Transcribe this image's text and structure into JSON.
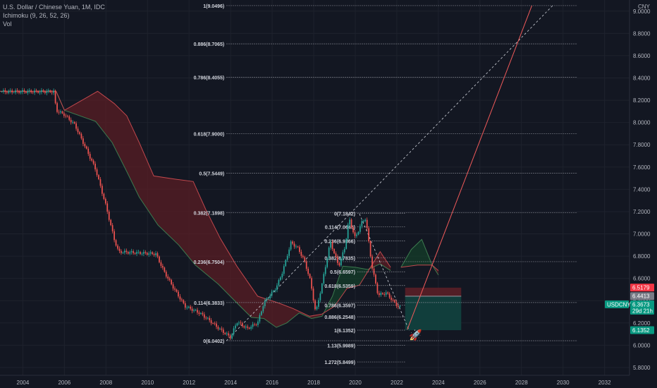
{
  "legend": {
    "title": "U.S. Dollar / Chinese Yuan, 1M, IDC",
    "indicator": "Ichimoku (9, 26, 52, 26)",
    "volume": "Vol"
  },
  "chart_data": {
    "type": "candlestick",
    "currency": "CNY",
    "symbol": "USDCNY",
    "ylim": [
      5.73,
      9.1
    ],
    "y_ticks": [
      5.8,
      6.0,
      6.2,
      6.4,
      6.6,
      6.8,
      7.0,
      7.2,
      7.4,
      7.6,
      7.8,
      8.0,
      8.2,
      8.4,
      8.6,
      8.8,
      9.0
    ],
    "y_tick_labels": [
      "5.8000",
      "6.0000",
      "6.2000",
      "6.4000",
      "6.6000",
      "6.8000",
      "7.0000",
      "7.2000",
      "7.4000",
      "7.6000",
      "7.8000",
      "8.0000",
      "8.2000",
      "8.4000",
      "8.6000",
      "8.8000",
      "9.0000"
    ],
    "x_ticks": [
      2004,
      2006,
      2008,
      2010,
      2012,
      2014,
      2016,
      2018,
      2020,
      2022,
      2024,
      2026,
      2028,
      2030,
      2032
    ],
    "x_tick_labels": [
      "2004",
      "2006",
      "2008",
      "2010",
      "2012",
      "2014",
      "2016",
      "2018",
      "2020",
      "2022",
      "2024",
      "2026",
      "2028",
      "2030",
      "2032"
    ],
    "xlim": [
      2002.9,
      2033.2
    ],
    "price_path": [
      [
        2002.9,
        8.277
      ],
      [
        2005.5,
        8.277
      ],
      [
        2005.6,
        8.11
      ],
      [
        2006.0,
        8.07
      ],
      [
        2006.5,
        7.98
      ],
      [
        2007.0,
        7.78
      ],
      [
        2007.5,
        7.58
      ],
      [
        2008.0,
        7.25
      ],
      [
        2008.4,
        6.95
      ],
      [
        2008.6,
        6.84
      ],
      [
        2009.5,
        6.83
      ],
      [
        2010.4,
        6.82
      ],
      [
        2010.8,
        6.66
      ],
      [
        2011.3,
        6.5
      ],
      [
        2011.8,
        6.35
      ],
      [
        2012.5,
        6.29
      ],
      [
        2013.0,
        6.22
      ],
      [
        2013.5,
        6.14
      ],
      [
        2014.0,
        6.07
      ],
      [
        2014.3,
        6.21
      ],
      [
        2014.8,
        6.15
      ],
      [
        2015.3,
        6.2
      ],
      [
        2015.6,
        6.38
      ],
      [
        2016.2,
        6.52
      ],
      [
        2016.5,
        6.66
      ],
      [
        2016.9,
        6.92
      ],
      [
        2017.2,
        6.88
      ],
      [
        2017.5,
        6.78
      ],
      [
        2017.8,
        6.61
      ],
      [
        2018.1,
        6.29
      ],
      [
        2018.4,
        6.55
      ],
      [
        2018.8,
        6.93
      ],
      [
        2019.2,
        6.71
      ],
      [
        2019.5,
        6.88
      ],
      [
        2019.7,
        7.14
      ],
      [
        2020.0,
        6.96
      ],
      [
        2020.3,
        7.1
      ],
      [
        2020.5,
        7.14
      ],
      [
        2020.8,
        6.71
      ],
      [
        2021.1,
        6.45
      ],
      [
        2021.5,
        6.47
      ],
      [
        2021.8,
        6.4
      ],
      [
        2022.1,
        6.34
      ]
    ],
    "ichimoku": {
      "span_a": [
        [
          2002.9,
          8.28
        ],
        [
          2005.6,
          8.28
        ],
        [
          2006.0,
          8.11
        ],
        [
          2007.5,
          8.01
        ],
        [
          2008.3,
          7.82
        ],
        [
          2009.0,
          7.56
        ],
        [
          2009.6,
          7.33
        ],
        [
          2010.5,
          7.08
        ],
        [
          2011.5,
          6.9
        ],
        [
          2012.3,
          6.72
        ],
        [
          2013.4,
          6.55
        ],
        [
          2014.3,
          6.38
        ],
        [
          2015.0,
          6.25
        ],
        [
          2015.6,
          6.24
        ],
        [
          2016.2,
          6.16
        ],
        [
          2016.7,
          6.2
        ],
        [
          2017.3,
          6.29
        ],
        [
          2017.9,
          6.24
        ],
        [
          2018.4,
          6.26
        ],
        [
          2018.9,
          6.44
        ],
        [
          2019.4,
          6.71
        ],
        [
          2020.0,
          6.7
        ],
        [
          2020.6,
          6.68
        ],
        [
          2021.2,
          6.73
        ],
        [
          2021.7,
          6.67
        ]
      ],
      "span_b": [
        [
          2002.9,
          8.28
        ],
        [
          2005.6,
          8.28
        ],
        [
          2006.0,
          8.11
        ],
        [
          2007.6,
          8.28
        ],
        [
          2008.4,
          8.17
        ],
        [
          2009.0,
          8.06
        ],
        [
          2009.6,
          7.82
        ],
        [
          2010.3,
          7.52
        ],
        [
          2011.4,
          7.49
        ],
        [
          2012.2,
          7.47
        ],
        [
          2012.8,
          7.22
        ],
        [
          2013.5,
          6.96
        ],
        [
          2014.3,
          6.71
        ],
        [
          2015.3,
          6.44
        ],
        [
          2016.3,
          6.38
        ],
        [
          2017.0,
          6.33
        ],
        [
          2017.8,
          6.26
        ],
        [
          2018.4,
          6.28
        ],
        [
          2019.0,
          6.35
        ],
        [
          2019.6,
          6.51
        ],
        [
          2020.2,
          6.54
        ],
        [
          2020.8,
          6.72
        ],
        [
          2021.2,
          6.84
        ],
        [
          2021.7,
          6.7
        ]
      ],
      "future_span_a": [
        [
          2022.2,
          6.7
        ],
        [
          2022.7,
          6.86
        ],
        [
          2023.2,
          6.95
        ],
        [
          2023.7,
          6.72
        ],
        [
          2024.0,
          6.63
        ]
      ],
      "future_span_b": [
        [
          2022.2,
          6.7
        ],
        [
          2023.0,
          6.72
        ],
        [
          2023.7,
          6.72
        ],
        [
          2024.0,
          6.67
        ]
      ]
    },
    "fib_left": {
      "x_start": 2013.8,
      "x_end": 2030.7,
      "levels": [
        {
          "label": "1(9.0496)",
          "value": 9.0496
        },
        {
          "label": "0.886(8.7065)",
          "value": 8.7065
        },
        {
          "label": "0.786(8.4055)",
          "value": 8.4055
        },
        {
          "label": "0.618(7.9000)",
          "value": 7.9
        },
        {
          "label": "0.5(7.5449)",
          "value": 7.5449
        },
        {
          "label": "0.382(7.1898)",
          "value": 7.1898
        },
        {
          "label": "0.236(6.7504)",
          "value": 6.7504
        },
        {
          "label": "0.114(6.3833)",
          "value": 6.3833
        },
        {
          "label": "0(6.0402)",
          "value": 6.0402
        }
      ]
    },
    "fib_right": {
      "x_start": 2020.1,
      "x_end": 2030.7,
      "levels": [
        {
          "label": "0(7.1842)",
          "value": 7.1842,
          "x_end": 2022.4
        },
        {
          "label": "0.114(7.0646)",
          "value": 7.0646,
          "x_end": 2022.4
        },
        {
          "label": "0.236(6.9366)",
          "value": 6.9366,
          "x_end": 2022.4
        },
        {
          "label": "0.382(6.7835)",
          "value": 6.7835,
          "x_end": 2022.4
        },
        {
          "label": "0.5(6.6597)",
          "value": 6.6597,
          "x_end": 2022.4
        },
        {
          "label": "0.618(6.5359)",
          "value": 6.5359,
          "x_end": 2022.4
        },
        {
          "label": "0.786(6.3597)",
          "value": 6.3597,
          "x_end": 2022.4
        },
        {
          "label": "0.886(6.2548)",
          "value": 6.2548,
          "x_end": 2022.4
        },
        {
          "label": "1(6.1352)",
          "value": 6.1352,
          "x_end": 2022.4
        },
        {
          "label": "1.13(5.9989)",
          "value": 5.9989,
          "x_end": 2022.4
        },
        {
          "label": "1.272(5.8499)",
          "value": 5.8499,
          "x_end": 2022.4
        }
      ]
    },
    "trend_dashed": [
      [
        2013.8,
        6.04
      ],
      [
        2029.5,
        9.05
      ]
    ],
    "trend_dashed_down": [
      [
        2020.2,
        7.18
      ],
      [
        2022.6,
        6.13
      ]
    ],
    "projection_line": [
      [
        2022.5,
        6.14
      ],
      [
        2028.5,
        9.05
      ]
    ],
    "position_box": {
      "x_start": 2022.4,
      "x_end": 2025.1,
      "stop_top": 6.517,
      "entry": 6.44,
      "target_bottom": 6.135
    },
    "price_labels": [
      {
        "text": "6.5179",
        "value": 6.5179,
        "color": "#f23645"
      },
      {
        "text": "6.4413",
        "value": 6.4413,
        "color": "#787b86"
      },
      {
        "text": "6.3673",
        "value": 6.3673,
        "color": "#089981",
        "sub": "29d 21h",
        "symbol": "USDCNY"
      },
      {
        "text": "6.1352",
        "value": 6.1352,
        "color": "#089981"
      }
    ],
    "icon": "rocket-icon",
    "icon_at": [
      2022.9,
      6.06
    ]
  },
  "colors": {
    "background": "#131722",
    "up": "#26a69a",
    "down": "#ef5350",
    "grid": "#1e222d",
    "fib_line": "#9598a1",
    "cloud_bear": "#5a1e24",
    "cloud_bull": "#143d2a",
    "span_a": "#3c7a4f",
    "span_b": "#c2484d",
    "projection": "#f05a5a",
    "box_stop": "#5a1f27",
    "box_target": "#12423f"
  }
}
